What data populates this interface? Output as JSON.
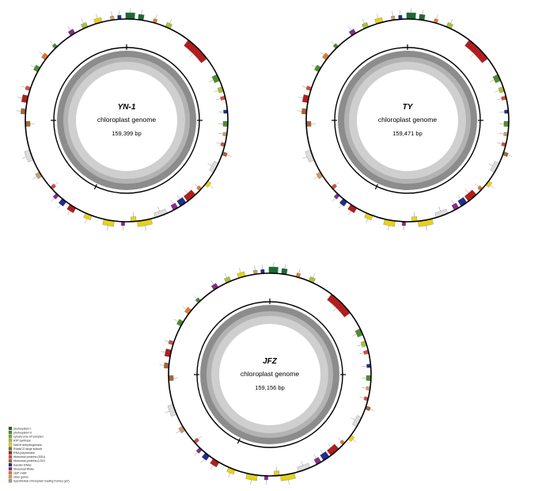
{
  "maps": [
    {
      "name": "YN-1",
      "subtitle": "chloroplast genome",
      "length": "159,399 bp"
    },
    {
      "name": "TY",
      "subtitle": "chloroplast genome",
      "length": "159,471 bp"
    },
    {
      "name": "JFZ",
      "subtitle": "chloroplast genome",
      "length": "159,156 bp"
    }
  ],
  "legend": [
    {
      "label": "photosystem I",
      "color": "#1a6b33"
    },
    {
      "label": "photosystem II",
      "color": "#4c8f2a"
    },
    {
      "label": "cytochrome b/f complex",
      "color": "#7fa335"
    },
    {
      "label": "ATP synthase",
      "color": "#a7c23c"
    },
    {
      "label": "NADH dehydrogenase",
      "color": "#e6d219"
    },
    {
      "label": "RubisCO large subunit",
      "color": "#5f7f2b"
    },
    {
      "label": "RNA polymerase",
      "color": "#b31d1d"
    },
    {
      "label": "ribosomal proteins (SSU)",
      "color": "#d64d3a"
    },
    {
      "label": "ribosomal proteins (LSU)",
      "color": "#a6682f"
    },
    {
      "label": "transfer RNAs",
      "color": "#1f2f8c"
    },
    {
      "label": "ribosomal RNAs",
      "color": "#8a2b8a"
    },
    {
      "label": "clpP, matK",
      "color": "#ea7a25"
    },
    {
      "label": "other genes",
      "color": "#c9a06a"
    },
    {
      "label": "hypothetical chloroplast reading frames (ycf)",
      "color": "#b59a80"
    }
  ],
  "features": [
    {
      "a": -88,
      "w": 5,
      "h": 8,
      "out": 1,
      "color": "#1a6b33"
    },
    {
      "a": -82,
      "w": 3,
      "h": 7,
      "out": 1,
      "color": "#1a6b33"
    },
    {
      "a": -74,
      "w": 2,
      "h": 5,
      "out": 1,
      "color": "#ea7a25"
    },
    {
      "a": -66,
      "w": 3,
      "h": 6,
      "out": 1,
      "color": "#a7c23c"
    },
    {
      "a": -45,
      "w": 15,
      "h": 9,
      "out": 0,
      "color": "#b31d1d"
    },
    {
      "a": -25,
      "w": 4,
      "h": 7,
      "out": 0,
      "color": "#4c8f2a"
    },
    {
      "a": -18,
      "w": 3,
      "h": 6,
      "out": 0,
      "color": "#a7c23c"
    },
    {
      "a": -13,
      "w": 2,
      "h": 6,
      "out": 0,
      "color": "#d64d3a"
    },
    {
      "a": -5,
      "w": 2,
      "h": 5,
      "out": 0,
      "color": "#1f2f8c"
    },
    {
      "a": 2,
      "w": 3,
      "h": 6,
      "out": 0,
      "color": "#4c8f2a"
    },
    {
      "a": 8,
      "w": 2,
      "h": 5,
      "out": 0,
      "color": "#c9a06a"
    },
    {
      "a": 14,
      "w": 2,
      "h": 5,
      "out": 0,
      "color": "#d64d3a"
    },
    {
      "a": 19,
      "w": 2,
      "h": 6,
      "out": 1,
      "color": "#a6682f"
    },
    {
      "a": 28,
      "w": 6,
      "h": 6,
      "out": 0,
      "color": "#dddddd"
    },
    {
      "a": 38,
      "w": 3,
      "h": 5,
      "out": 1,
      "color": "#e6d219"
    },
    {
      "a": 43,
      "w": 2,
      "h": 5,
      "out": 0,
      "color": "#ea7a25"
    },
    {
      "a": 50,
      "w": 6,
      "h": 8,
      "out": 0,
      "color": "#b31d1d"
    },
    {
      "a": 56,
      "w": 4,
      "h": 8,
      "out": 0,
      "color": "#1f2f8c"
    },
    {
      "a": 61,
      "w": 3,
      "h": 7,
      "out": 0,
      "color": "#8a2b8a"
    },
    {
      "a": 70,
      "w": 7,
      "h": 6,
      "out": 0,
      "color": "#dddddd"
    },
    {
      "a": 80,
      "w": 8,
      "h": 7,
      "out": 1,
      "color": "#e6d219"
    },
    {
      "a": 86,
      "w": 3,
      "h": 6,
      "out": 0,
      "color": "#e6d219"
    },
    {
      "a": 92,
      "w": 2,
      "h": 5,
      "out": 1,
      "color": "#8a2b8a"
    },
    {
      "a": 100,
      "w": 6,
      "h": 7,
      "out": 1,
      "color": "#e6d219"
    },
    {
      "a": 112,
      "w": 4,
      "h": 6,
      "out": 1,
      "color": "#e6d219"
    },
    {
      "a": 122,
      "w": 4,
      "h": 7,
      "out": 1,
      "color": "#b31d1d"
    },
    {
      "a": 128,
      "w": 3,
      "h": 7,
      "out": 1,
      "color": "#1f2f8c"
    },
    {
      "a": 133,
      "w": 2,
      "h": 6,
      "out": 1,
      "color": "#8a2b8a"
    },
    {
      "a": 138,
      "w": 2,
      "h": 6,
      "out": 0,
      "color": "#d64d3a"
    },
    {
      "a": 148,
      "w": 3,
      "h": 6,
      "out": 1,
      "color": "#c9a06a"
    },
    {
      "a": 160,
      "w": 6,
      "h": 7,
      "out": 1,
      "color": "#dddddd"
    },
    {
      "a": 178,
      "w": 3,
      "h": 6,
      "out": 0,
      "color": "#a6682f"
    },
    {
      "a": 185,
      "w": 3,
      "h": 6,
      "out": 1,
      "color": "#a6682f"
    },
    {
      "a": 192,
      "w": 4,
      "h": 7,
      "out": 1,
      "color": "#b31d1d"
    },
    {
      "a": 198,
      "w": 2,
      "h": 6,
      "out": 1,
      "color": "#d64d3a"
    },
    {
      "a": 210,
      "w": 3,
      "h": 6,
      "out": 1,
      "color": "#4c8f2a"
    },
    {
      "a": 218,
      "w": 3,
      "h": 6,
      "out": 1,
      "color": "#ea7a25"
    },
    {
      "a": 226,
      "w": 2,
      "h": 5,
      "out": 1,
      "color": "#4c8f2a"
    },
    {
      "a": 238,
      "w": 3,
      "h": 6,
      "out": 1,
      "color": "#8a2b8a"
    },
    {
      "a": 246,
      "w": 3,
      "h": 6,
      "out": 1,
      "color": "#a7c23c"
    },
    {
      "a": 254,
      "w": 4,
      "h": 6,
      "out": 1,
      "color": "#e6d219"
    },
    {
      "a": 262,
      "w": 2,
      "h": 5,
      "out": 1,
      "color": "#c9a06a"
    },
    {
      "a": 266,
      "w": 2,
      "h": 5,
      "out": 1,
      "color": "#1f2f8c"
    }
  ]
}
